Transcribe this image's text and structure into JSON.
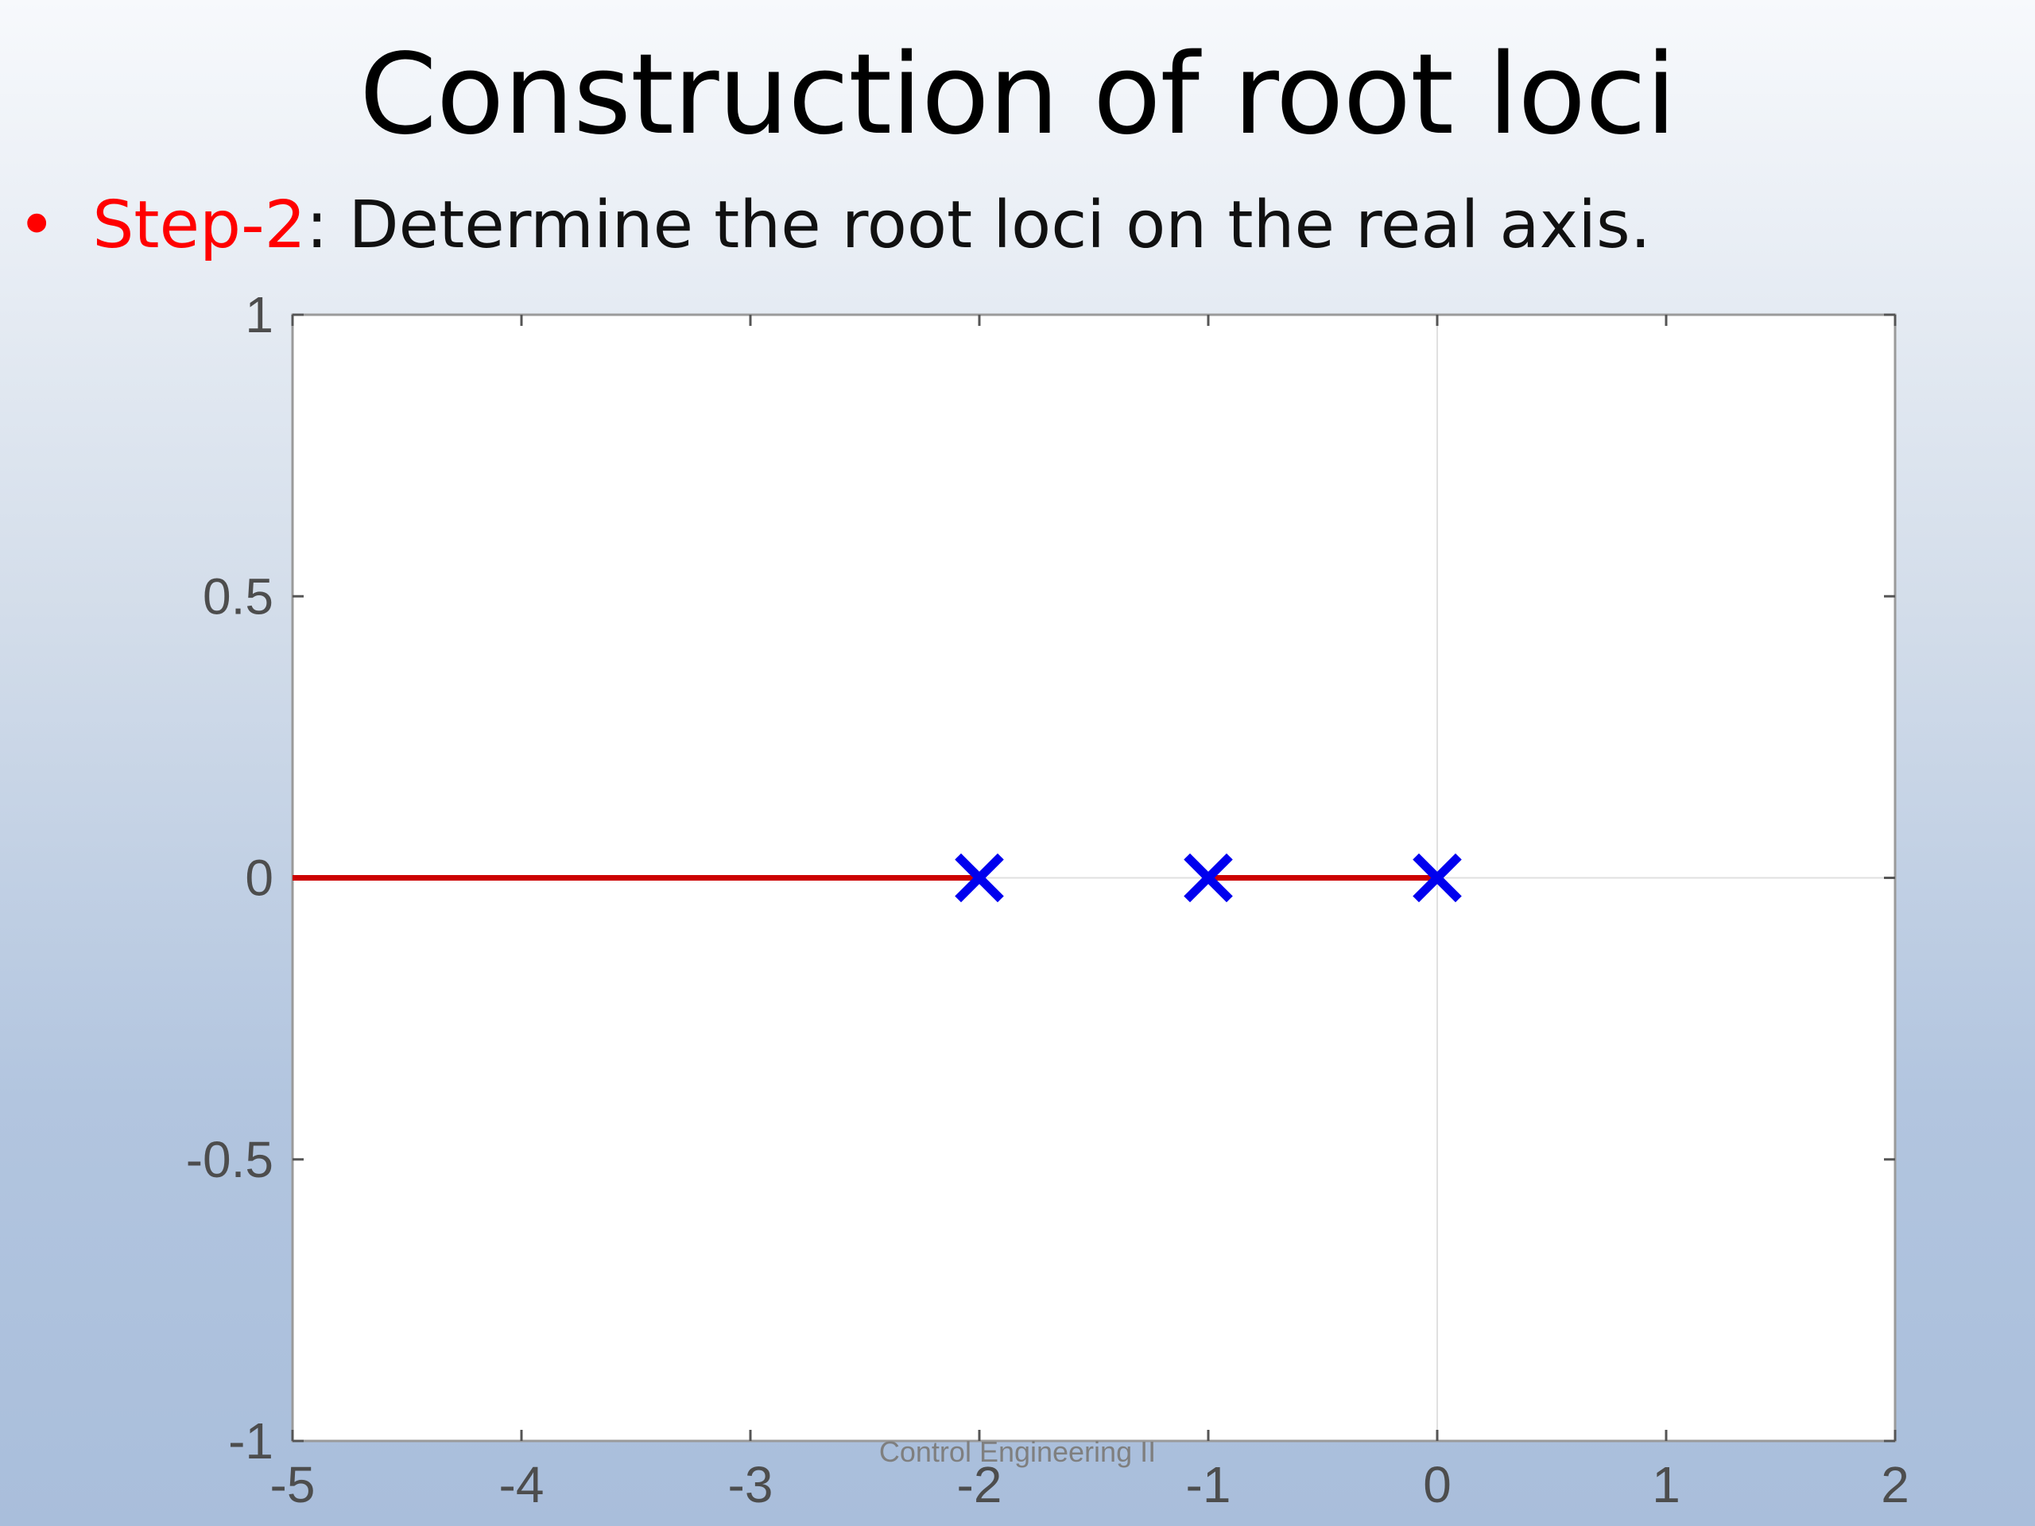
{
  "slide": {
    "title": "Construction of root loci",
    "bullet": {
      "marker": "•",
      "step_label": "Step-2",
      "text": ": Determine the root loci on the real axis."
    },
    "footer": "Control Engineering II"
  },
  "colors": {
    "step_label": "#ff0000",
    "locus": "#cc0000",
    "pole": "#0000ee",
    "axis_text": "#4d4d4d",
    "grid": "#e0e0e0"
  },
  "chart_data": {
    "type": "line",
    "title": "",
    "xlabel": "",
    "ylabel": "",
    "xlim": [
      -5,
      2
    ],
    "ylim": [
      -1,
      1
    ],
    "xticks": [
      -5,
      -4,
      -3,
      -2,
      -1,
      0,
      1,
      2
    ],
    "yticks": [
      -1,
      -0.5,
      0,
      0.5,
      1
    ],
    "xtick_labels": [
      "-5",
      "-4",
      "-3",
      "-2",
      "-1",
      "0",
      "1",
      "2"
    ],
    "ytick_labels": [
      "-1",
      "-0.5",
      "0",
      "0.5",
      "1"
    ],
    "grid_lines": {
      "x": [
        0
      ],
      "y": [
        0
      ]
    },
    "series": [
      {
        "kind": "locus-segment",
        "points": [
          [
            -5,
            0
          ],
          [
            -2,
            0
          ]
        ]
      },
      {
        "kind": "locus-segment",
        "points": [
          [
            -1,
            0
          ],
          [
            0,
            0
          ]
        ]
      }
    ],
    "poles": [
      {
        "x": -2,
        "y": 0
      },
      {
        "x": -1,
        "y": 0
      },
      {
        "x": 0,
        "y": 0
      }
    ]
  }
}
